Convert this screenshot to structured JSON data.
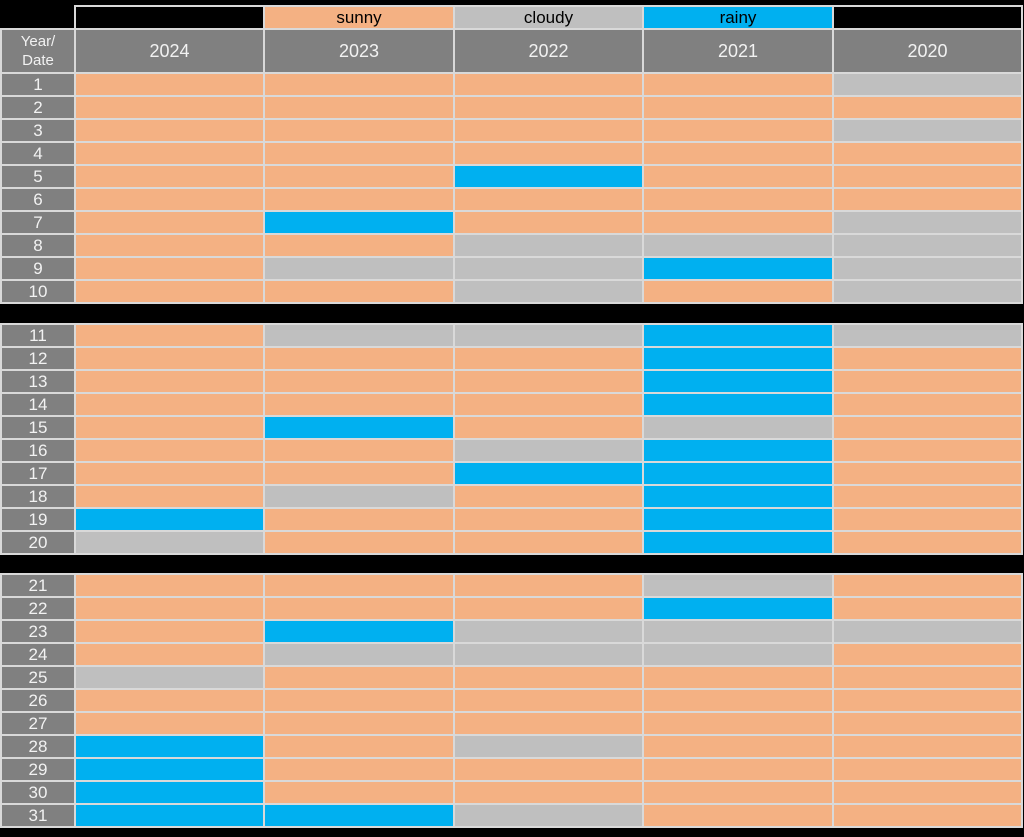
{
  "table": {
    "corner_label": "Year/\nDate",
    "years": [
      "2024",
      "2023",
      "2022",
      "2021",
      "2020"
    ],
    "legend_row": [
      {
        "label": "",
        "state": "none"
      },
      {
        "label": "sunny",
        "state": "sunny"
      },
      {
        "label": "cloudy",
        "state": "cloudy"
      },
      {
        "label": "rainy",
        "state": "rainy"
      },
      {
        "label": "",
        "state": "none"
      }
    ]
  },
  "colors": {
    "sunny": "#F4B183",
    "cloudy": "#BFBFBF",
    "rainy": "#00B0F0",
    "none": "#000000",
    "header_bg": "#808080",
    "header_text": "#F2F2F2",
    "grid_line": "#D9D9D9",
    "page_bg": "#000000"
  },
  "chart_data": {
    "type": "heatmap",
    "row_label_header": "Year/Date",
    "columns": [
      "2024",
      "2023",
      "2022",
      "2021",
      "2020"
    ],
    "legend": [
      {
        "label": "sunny",
        "color": "#F4B183"
      },
      {
        "label": "cloudy",
        "color": "#BFBFBF"
      },
      {
        "label": "rainy",
        "color": "#00B0F0"
      }
    ],
    "row_groups": [
      [
        1,
        10
      ],
      [
        11,
        20
      ],
      [
        21,
        31
      ]
    ],
    "rows": [
      {
        "date": 1,
        "states": [
          "sunny",
          "sunny",
          "sunny",
          "sunny",
          "cloudy"
        ]
      },
      {
        "date": 2,
        "states": [
          "sunny",
          "sunny",
          "sunny",
          "sunny",
          "sunny"
        ]
      },
      {
        "date": 3,
        "states": [
          "sunny",
          "sunny",
          "sunny",
          "sunny",
          "cloudy"
        ]
      },
      {
        "date": 4,
        "states": [
          "sunny",
          "sunny",
          "sunny",
          "sunny",
          "sunny"
        ]
      },
      {
        "date": 5,
        "states": [
          "sunny",
          "sunny",
          "rainy",
          "sunny",
          "sunny"
        ]
      },
      {
        "date": 6,
        "states": [
          "sunny",
          "sunny",
          "sunny",
          "sunny",
          "sunny"
        ]
      },
      {
        "date": 7,
        "states": [
          "sunny",
          "rainy",
          "sunny",
          "sunny",
          "cloudy"
        ]
      },
      {
        "date": 8,
        "states": [
          "sunny",
          "sunny",
          "cloudy",
          "cloudy",
          "cloudy"
        ]
      },
      {
        "date": 9,
        "states": [
          "sunny",
          "cloudy",
          "cloudy",
          "rainy",
          "cloudy"
        ]
      },
      {
        "date": 10,
        "states": [
          "sunny",
          "sunny",
          "cloudy",
          "sunny",
          "cloudy"
        ]
      },
      {
        "date": 11,
        "states": [
          "sunny",
          "cloudy",
          "cloudy",
          "rainy",
          "cloudy"
        ]
      },
      {
        "date": 12,
        "states": [
          "sunny",
          "sunny",
          "sunny",
          "rainy",
          "sunny"
        ]
      },
      {
        "date": 13,
        "states": [
          "sunny",
          "sunny",
          "sunny",
          "rainy",
          "sunny"
        ]
      },
      {
        "date": 14,
        "states": [
          "sunny",
          "sunny",
          "sunny",
          "rainy",
          "sunny"
        ]
      },
      {
        "date": 15,
        "states": [
          "sunny",
          "rainy",
          "sunny",
          "cloudy",
          "sunny"
        ]
      },
      {
        "date": 16,
        "states": [
          "sunny",
          "sunny",
          "cloudy",
          "rainy",
          "sunny"
        ]
      },
      {
        "date": 17,
        "states": [
          "sunny",
          "sunny",
          "rainy",
          "rainy",
          "sunny"
        ]
      },
      {
        "date": 18,
        "states": [
          "sunny",
          "cloudy",
          "sunny",
          "rainy",
          "sunny"
        ]
      },
      {
        "date": 19,
        "states": [
          "rainy",
          "sunny",
          "sunny",
          "rainy",
          "sunny"
        ]
      },
      {
        "date": 20,
        "states": [
          "cloudy",
          "sunny",
          "sunny",
          "rainy",
          "sunny"
        ]
      },
      {
        "date": 21,
        "states": [
          "sunny",
          "sunny",
          "sunny",
          "cloudy",
          "sunny"
        ]
      },
      {
        "date": 22,
        "states": [
          "sunny",
          "sunny",
          "sunny",
          "rainy",
          "sunny"
        ]
      },
      {
        "date": 23,
        "states": [
          "sunny",
          "rainy",
          "cloudy",
          "cloudy",
          "cloudy"
        ]
      },
      {
        "date": 24,
        "states": [
          "sunny",
          "cloudy",
          "cloudy",
          "cloudy",
          "sunny"
        ]
      },
      {
        "date": 25,
        "states": [
          "cloudy",
          "sunny",
          "sunny",
          "sunny",
          "sunny"
        ]
      },
      {
        "date": 26,
        "states": [
          "sunny",
          "sunny",
          "sunny",
          "sunny",
          "sunny"
        ]
      },
      {
        "date": 27,
        "states": [
          "sunny",
          "sunny",
          "sunny",
          "sunny",
          "sunny"
        ]
      },
      {
        "date": 28,
        "states": [
          "rainy",
          "sunny",
          "cloudy",
          "sunny",
          "sunny"
        ]
      },
      {
        "date": 29,
        "states": [
          "rainy",
          "sunny",
          "sunny",
          "sunny",
          "sunny"
        ]
      },
      {
        "date": 30,
        "states": [
          "rainy",
          "sunny",
          "sunny",
          "sunny",
          "sunny"
        ]
      },
      {
        "date": 31,
        "states": [
          "rainy",
          "rainy",
          "cloudy",
          "sunny",
          "sunny"
        ]
      }
    ]
  }
}
